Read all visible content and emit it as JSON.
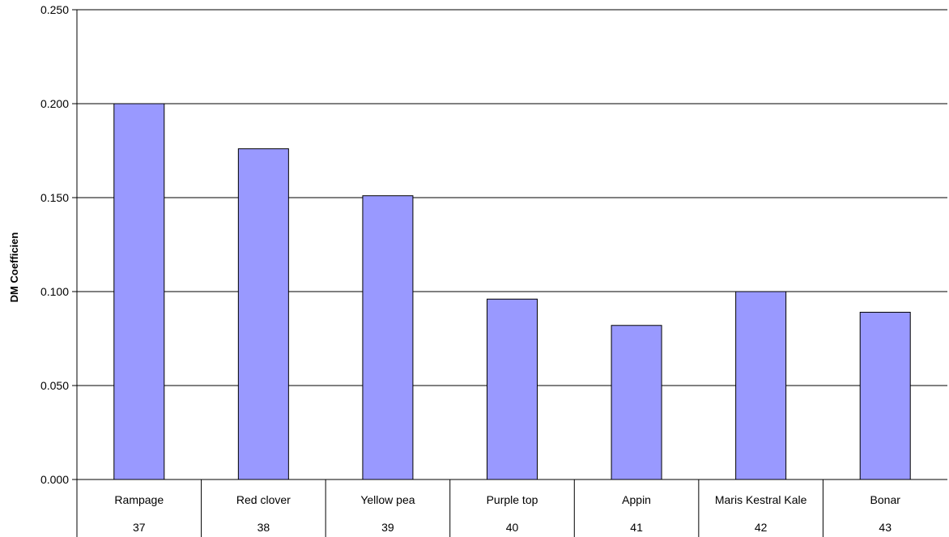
{
  "chart_data": {
    "type": "bar",
    "title": "",
    "ylabel": "DM Coefficien",
    "xlabel": "",
    "ylim": [
      0,
      0.25
    ],
    "yticks": [
      "0.000",
      "0.050",
      "0.100",
      "0.150",
      "0.200",
      "0.250"
    ],
    "ytick_values": [
      0,
      0.05,
      0.1,
      0.15,
      0.2,
      0.25
    ],
    "grid": true,
    "legend": "none",
    "categories": [
      "Rampage",
      "Red clover",
      "Yellow pea",
      "Purple top",
      "Appin",
      "Maris Kestral Kale",
      "Bonar"
    ],
    "category_ids": [
      "37",
      "38",
      "39",
      "40",
      "41",
      "42",
      "43"
    ],
    "values": [
      0.2,
      0.176,
      0.151,
      0.096,
      0.082,
      0.1,
      0.089
    ],
    "bar_color": "#9999ff",
    "bar_edge_color": "#000000"
  }
}
